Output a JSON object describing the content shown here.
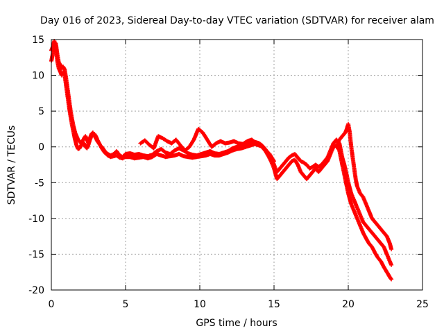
{
  "chart_data": {
    "type": "scatter",
    "title": "Day 016 of 2023, Sidereal Day-to-day VTEC variation (SDTVAR) for receiver alam",
    "xlabel": "GPS time / hours",
    "ylabel": "SDTVAR / TECUs",
    "xlim": [
      0,
      25
    ],
    "ylim": [
      -20,
      15
    ],
    "xticks": [
      0,
      5,
      10,
      15,
      20,
      25
    ],
    "yticks": [
      -20,
      -15,
      -10,
      -5,
      0,
      5,
      10,
      15
    ],
    "grid": true,
    "marker": "+",
    "series": [
      {
        "name": "SDTVAR",
        "color": "#ff0000",
        "strands": [
          {
            "x": [
              0.0,
              0.1,
              0.2,
              0.3,
              0.4,
              0.5,
              0.6,
              0.7,
              0.8,
              0.9,
              1.0,
              1.1,
              1.2,
              1.3,
              1.4,
              1.5,
              1.6,
              1.7,
              1.8,
              1.9,
              2.0,
              2.1,
              2.2,
              2.3,
              2.4,
              2.5,
              2.6,
              2.7,
              2.8,
              2.9,
              3.0,
              3.1,
              3.2,
              3.3,
              3.4,
              3.5,
              3.6,
              3.7,
              3.8,
              3.9,
              4.0,
              4.2,
              4.4,
              4.6,
              4.8,
              5.0,
              5.3,
              5.6,
              5.9,
              6.2,
              6.5,
              6.8,
              7.1,
              7.4,
              7.7,
              8.0,
              8.3,
              8.6,
              8.9,
              9.2,
              9.5,
              9.8,
              10.1,
              10.4,
              10.7,
              11.0,
              11.3,
              11.6,
              11.9,
              12.2,
              12.5,
              12.8,
              13.1,
              13.4,
              13.7,
              14.0,
              14.2,
              14.4,
              14.6,
              14.8,
              15.0,
              15.2,
              15.4,
              15.6,
              15.8,
              16.0,
              16.2,
              16.4,
              16.6,
              16.8,
              17.0,
              17.2,
              17.4,
              17.6,
              17.8,
              18.0,
              18.2,
              18.4,
              18.6,
              18.8,
              19.0,
              19.2,
              19.4,
              19.6,
              19.8,
              20.0,
              20.2,
              20.4,
              20.6,
              20.8,
              21.0,
              21.2,
              21.4,
              21.6,
              21.8,
              22.0,
              22.2,
              22.4,
              22.6,
              22.8,
              22.9
            ],
            "y": [
              12.0,
              13.0,
              14.2,
              14.5,
              13.0,
              11.8,
              11.5,
              11.0,
              11.2,
              10.8,
              9.5,
              8.0,
              6.5,
              5.0,
              3.8,
              2.8,
              2.0,
              1.5,
              1.0,
              0.8,
              0.5,
              0.8,
              1.2,
              1.5,
              1.0,
              0.5,
              1.2,
              1.8,
              2.0,
              1.6,
              1.2,
              0.8,
              0.5,
              0.2,
              0.0,
              -0.3,
              -0.6,
              -0.8,
              -1.0,
              -1.1,
              -1.2,
              -1.0,
              -0.6,
              -1.2,
              -1.4,
              -1.0,
              -0.9,
              -1.1,
              -1.0,
              -1.2,
              -1.3,
              -1.1,
              -0.6,
              -0.3,
              -0.8,
              -1.0,
              -0.5,
              -0.2,
              -0.5,
              -0.9,
              -1.1,
              -1.2,
              -1.0,
              -0.8,
              -0.6,
              -0.9,
              -1.0,
              -0.8,
              -0.6,
              -0.2,
              0.0,
              0.1,
              0.2,
              0.5,
              0.7,
              0.5,
              0.2,
              -0.3,
              -0.8,
              -1.5,
              -2.5,
              -3.5,
              -3.0,
              -2.5,
              -2.0,
              -1.5,
              -1.2,
              -1.0,
              -1.5,
              -2.0,
              -2.2,
              -2.5,
              -3.0,
              -2.8,
              -2.5,
              -2.8,
              -2.5,
              -2.0,
              -1.5,
              -0.5,
              0.5,
              1.0,
              0.5,
              -1.5,
              -3.0,
              -5.0,
              -6.5,
              -7.5,
              -8.5,
              -9.5,
              -10.5,
              -11.0,
              -11.5,
              -12.0,
              -12.5,
              -13.0,
              -13.5,
              -14.0,
              -15.0,
              -16.0,
              -16.5
            ]
          },
          {
            "x": [
              0.0,
              0.1,
              0.2,
              0.3,
              0.4,
              0.5,
              0.6,
              0.7,
              0.8,
              0.9,
              1.0,
              1.1,
              1.2,
              1.3,
              1.4,
              1.5,
              1.6,
              1.7,
              1.8,
              1.9,
              2.0,
              2.1,
              2.2,
              2.3,
              2.4,
              2.5,
              2.6,
              2.7,
              2.8,
              2.9,
              3.0,
              3.1,
              3.2,
              3.3,
              3.4,
              3.5,
              3.6,
              3.7,
              3.8,
              3.9,
              4.0,
              4.2,
              4.4,
              4.6,
              4.8,
              5.0,
              5.3,
              5.6,
              5.9,
              6.2,
              6.5,
              6.8,
              7.1,
              7.4,
              7.7,
              8.0,
              8.3,
              8.6,
              8.9,
              9.2,
              9.5,
              9.8,
              10.1,
              10.4,
              10.7,
              11.0,
              11.3,
              11.6,
              11.9,
              12.2,
              12.5,
              12.8,
              13.1,
              13.4,
              13.7,
              14.0,
              14.2,
              14.4,
              14.6,
              14.8,
              15.0,
              15.2,
              15.4,
              15.6,
              15.8,
              16.0,
              16.2,
              16.4,
              16.6,
              16.8,
              17.0,
              17.2,
              17.4,
              17.6,
              17.8,
              18.0,
              18.2,
              18.4,
              18.6,
              18.8,
              19.0,
              19.2,
              19.4,
              19.6,
              19.8,
              20.0,
              20.2,
              20.4,
              20.6,
              20.8,
              21.0,
              21.2,
              21.4,
              21.6,
              21.8,
              22.0,
              22.2,
              22.4,
              22.6,
              22.8,
              22.9
            ],
            "y": [
              13.5,
              14.0,
              14.8,
              14.0,
              12.0,
              11.0,
              10.5,
              10.0,
              10.5,
              10.0,
              8.5,
              7.0,
              5.5,
              4.2,
              3.0,
              2.0,
              1.0,
              0.2,
              -0.3,
              -0.2,
              0.2,
              0.6,
              0.5,
              0.0,
              -0.2,
              0.3,
              1.0,
              1.5,
              1.8,
              1.8,
              1.5,
              1.0,
              0.6,
              0.2,
              -0.2,
              -0.5,
              -0.8,
              -1.0,
              -1.2,
              -1.3,
              -1.4,
              -1.3,
              -1.2,
              -1.5,
              -1.6,
              -1.4,
              -1.4,
              -1.6,
              -1.5,
              -1.4,
              -1.6,
              -1.4,
              -1.0,
              -1.2,
              -1.4,
              -1.3,
              -1.2,
              -1.0,
              -1.3,
              -1.4,
              -1.5,
              -1.4,
              -1.3,
              -1.2,
              -1.0,
              -1.2,
              -1.2,
              -1.0,
              -0.8,
              -0.5,
              -0.3,
              -0.2,
              0.0,
              0.2,
              0.4,
              0.2,
              0.0,
              -0.5,
              -1.2,
              -2.0,
              -3.0,
              -4.5,
              -4.0,
              -3.5,
              -3.0,
              -2.5,
              -2.0,
              -1.8,
              -2.5,
              -3.5,
              -4.0,
              -4.5,
              -4.0,
              -3.5,
              -3.0,
              -3.5,
              -3.0,
              -2.5,
              -2.0,
              -1.0,
              0.0,
              0.2,
              -0.5,
              -2.5,
              -4.5,
              -6.5,
              -8.0,
              -9.0,
              -10.0,
              -11.0,
              -12.0,
              -12.8,
              -13.5,
              -14.0,
              -14.8,
              -15.5,
              -16.0,
              -16.8,
              -17.5,
              -18.2,
              -18.5
            ]
          },
          {
            "x": [
              6.0,
              6.3,
              6.6,
              6.9,
              7.2,
              7.5,
              7.8,
              8.1,
              8.4,
              8.7,
              9.0,
              9.3,
              9.6,
              9.9,
              10.2,
              10.5,
              10.8,
              11.1,
              11.4,
              11.7,
              12.0,
              12.3,
              12.6,
              12.9,
              13.2,
              13.5,
              13.8,
              14.1,
              14.4,
              14.7,
              15.0
            ],
            "y": [
              0.5,
              0.9,
              0.3,
              -0.2,
              1.5,
              1.2,
              0.8,
              0.5,
              1.0,
              0.2,
              -0.5,
              0.0,
              1.0,
              2.5,
              2.0,
              1.0,
              0.0,
              0.5,
              0.8,
              0.5,
              0.6,
              0.8,
              0.5,
              0.4,
              0.8,
              1.0,
              0.5,
              0.2,
              -0.5,
              -1.0,
              -2.0
            ]
          },
          {
            "x": [
              19.2,
              19.4,
              19.6,
              19.8,
              19.9,
              20.0,
              20.1,
              20.2,
              20.3,
              20.4,
              20.5,
              20.6,
              20.8,
              21.0,
              21.2,
              21.4,
              21.6,
              21.8,
              22.0,
              22.2,
              22.4,
              22.6,
              22.8,
              22.9
            ],
            "y": [
              0.0,
              1.0,
              1.5,
              2.0,
              2.5,
              3.2,
              2.0,
              0.0,
              -1.5,
              -3.0,
              -4.5,
              -5.5,
              -6.5,
              -7.0,
              -8.0,
              -9.0,
              -10.0,
              -10.5,
              -11.0,
              -11.5,
              -12.0,
              -12.5,
              -13.5,
              -14.3
            ]
          }
        ]
      }
    ]
  }
}
